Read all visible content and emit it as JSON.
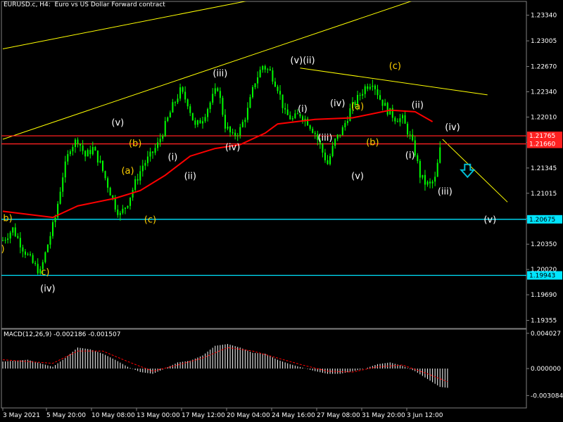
{
  "header": {
    "symbol_line": "EURUSD.c, H4:  Euro vs US Dollar Forward contract",
    "indicator_line": "MACD(12,26,9) -0.002186 -0.001507"
  },
  "colors": {
    "background": "#000000",
    "frame": "#808080",
    "candle": "#00ff00",
    "ma": "#ff0000",
    "trendline": "#ffff00",
    "level_cyan": "#00e5ff",
    "level_red": "#ff2020",
    "wave_white": "#ffffff",
    "wave_yellow": "#ffd000",
    "macd_hist": "#ffffff",
    "macd_signal": "#ff0000",
    "arrow": "#00bcd4"
  },
  "chart_data": [
    {
      "type": "candlestick",
      "symbol": "EURUSD.c",
      "timeframe": "H4",
      "ylim": [
        1.1925,
        1.2352
      ],
      "y_ticks": [
        1.2334,
        1.23005,
        1.2267,
        1.2234,
        1.2201,
        1.2168,
        1.21345,
        1.21015,
        1.20685,
        1.2035,
        1.2002,
        1.1969,
        1.19355
      ],
      "y_tick_labels": [
        "1.23340",
        "1.23005",
        "1.22670",
        "1.22340",
        "1.22010",
        "1.21680",
        "1.21345",
        "1.21015",
        "1.20685",
        "1.20350",
        "1.20020",
        "1.19690",
        "1.19355"
      ],
      "x_tick_labels": [
        "3 May 2021",
        "5 May 20:00",
        "10 May 08:00",
        "13 May 00:00",
        "17 May 12:00",
        "20 May 04:00",
        "24 May 16:00",
        "27 May 08:00",
        "31 May 20:00",
        "3 Jun 12:00"
      ],
      "close_path": [
        [
          0,
          1.204
        ],
        [
          4,
          1.2055
        ],
        [
          8,
          1.203
        ],
        [
          12,
          1.201
        ],
        [
          15,
          1.1998
        ],
        [
          18,
          1.2035
        ],
        [
          21,
          1.207
        ],
        [
          24,
          1.2125
        ],
        [
          27,
          1.2162
        ],
        [
          30,
          1.2172
        ],
        [
          33,
          1.215
        ],
        [
          36,
          1.216
        ],
        [
          39,
          1.214
        ],
        [
          42,
          1.2112
        ],
        [
          45,
          1.2085
        ],
        [
          47,
          1.2073
        ],
        [
          50,
          1.209
        ],
        [
          53,
          1.2115
        ],
        [
          56,
          1.2138
        ],
        [
          59,
          1.215
        ],
        [
          62,
          1.2165
        ],
        [
          65,
          1.219
        ],
        [
          68,
          1.2215
        ],
        [
          71,
          1.2235
        ],
        [
          74,
          1.222
        ],
        [
          77,
          1.2188
        ],
        [
          80,
          1.22
        ],
        [
          83,
          1.222
        ],
        [
          86,
          1.224
        ],
        [
          89,
          1.219
        ],
        [
          92,
          1.2175
        ],
        [
          95,
          1.2185
        ],
        [
          98,
          1.221
        ],
        [
          101,
          1.2248
        ],
        [
          104,
          1.2268
        ],
        [
          107,
          1.226
        ],
        [
          110,
          1.224
        ],
        [
          113,
          1.2205
        ],
        [
          116,
          1.2198
        ],
        [
          119,
          1.2205
        ],
        [
          122,
          1.2195
        ],
        [
          125,
          1.218
        ],
        [
          128,
          1.2155
        ],
        [
          130,
          1.214
        ],
        [
          133,
          1.217
        ],
        [
          136,
          1.2185
        ],
        [
          139,
          1.221
        ],
        [
          142,
          1.2225
        ],
        [
          145,
          1.224
        ],
        [
          148,
          1.2248
        ],
        [
          151,
          1.2225
        ],
        [
          154,
          1.221
        ],
        [
          157,
          1.22
        ],
        [
          160,
          1.2198
        ],
        [
          163,
          1.2175
        ],
        [
          165,
          1.2155
        ],
        [
          167,
          1.2125
        ],
        [
          169,
          1.2115
        ],
        [
          171,
          1.2112
        ],
        [
          173,
          1.212
        ],
        [
          175,
          1.2158
        ]
      ],
      "moving_average": [
        [
          0,
          1.2078
        ],
        [
          20,
          1.207
        ],
        [
          30,
          1.2085
        ],
        [
          45,
          1.2095
        ],
        [
          55,
          1.2105
        ],
        [
          65,
          1.2125
        ],
        [
          75,
          1.215
        ],
        [
          85,
          1.216
        ],
        [
          95,
          1.2165
        ],
        [
          105,
          1.218
        ],
        [
          110,
          1.2192
        ],
        [
          125,
          1.2198
        ],
        [
          140,
          1.22
        ],
        [
          155,
          1.221
        ],
        [
          165,
          1.2208
        ],
        [
          172,
          1.2195
        ]
      ],
      "horizontal_levels": [
        {
          "price": 1.21765,
          "label": "1.21765",
          "color": "red"
        },
        {
          "price": 1.2166,
          "label": "1.21660",
          "color": "red"
        },
        {
          "price": 1.20675,
          "label": "1.20675",
          "color": "cyan"
        },
        {
          "price": 1.19943,
          "label": "1.19943",
          "color": "cyan"
        }
      ],
      "trendlines": [
        {
          "from": [
            0,
            1.229
          ],
          "to": [
            125,
            1.237
          ]
        },
        {
          "from": [
            0,
            1.2172
          ],
          "to": [
            175,
            1.2365
          ]
        },
        {
          "from": [
            119,
            1.2265
          ],
          "to": [
            194,
            1.223
          ]
        },
        {
          "from": [
            176,
            1.2172
          ],
          "to": [
            202,
            1.209
          ]
        }
      ],
      "wave_labels": [
        {
          "text": "b)",
          "x": 2,
          "price": 1.2065,
          "color": "yellow"
        },
        {
          "text": ")",
          "x": 0,
          "price": 1.2025,
          "color": "yellow"
        },
        {
          "text": "c)",
          "x": 17,
          "price": 1.1995,
          "color": "yellow"
        },
        {
          "text": "(iv)",
          "x": 18,
          "price": 1.1973,
          "color": "white"
        },
        {
          "text": "(v)",
          "x": 46,
          "price": 1.219,
          "color": "white"
        },
        {
          "text": "(b)",
          "x": 53,
          "price": 1.2163,
          "color": "yellow"
        },
        {
          "text": "(a)",
          "x": 50,
          "price": 1.2127,
          "color": "yellow"
        },
        {
          "text": "(c)",
          "x": 59,
          "price": 1.2063,
          "color": "yellow"
        },
        {
          "text": "(i)",
          "x": 68,
          "price": 1.2145,
          "color": "white"
        },
        {
          "text": "(ii)",
          "x": 75,
          "price": 1.212,
          "color": "white"
        },
        {
          "text": "(iii)",
          "x": 87,
          "price": 1.2254,
          "color": "white"
        },
        {
          "text": "(iv)",
          "x": 92,
          "price": 1.2158,
          "color": "white"
        },
        {
          "text": "(v)(ii)",
          "x": 120,
          "price": 1.2271,
          "color": "white"
        },
        {
          "text": "(i)",
          "x": 120,
          "price": 1.2208,
          "color": "white"
        },
        {
          "text": "(iv)",
          "x": 134,
          "price": 1.2215,
          "color": "white"
        },
        {
          "text": "(a)",
          "x": 142,
          "price": 1.2211,
          "color": "yellow"
        },
        {
          "text": "(iii)",
          "x": 129,
          "price": 1.217,
          "color": "white"
        },
        {
          "text": "(b)",
          "x": 148,
          "price": 1.2164,
          "color": "yellow"
        },
        {
          "text": "(v)",
          "x": 142,
          "price": 1.212,
          "color": "white"
        },
        {
          "text": "(c)",
          "x": 157,
          "price": 1.2264,
          "color": "yellow"
        },
        {
          "text": "(ii)",
          "x": 166,
          "price": 1.2213,
          "color": "white"
        },
        {
          "text": "(i)",
          "x": 163,
          "price": 1.2147,
          "color": "white"
        },
        {
          "text": "(iv)",
          "x": 180,
          "price": 1.2184,
          "color": "white"
        },
        {
          "text": "(iii)",
          "x": 177,
          "price": 1.21,
          "color": "white"
        },
        {
          "text": "(v)",
          "x": 195,
          "price": 1.2063,
          "color": "white"
        }
      ],
      "arrow": {
        "direction": "down",
        "x": 186,
        "price": 1.213
      }
    },
    {
      "type": "bar",
      "name": "MACD(12,26,9)",
      "main": -0.002186,
      "signal": -0.001507,
      "ylim": [
        -0.0045,
        0.0045
      ],
      "y_ticks": [
        0.004027,
        0.0,
        -0.003084
      ],
      "y_tick_labels": [
        "0.004027",
        "0.000000",
        "-0.003084"
      ],
      "histogram": [
        [
          0,
          0.0008
        ],
        [
          10,
          0.001
        ],
        [
          15,
          0.0006
        ],
        [
          20,
          0.0002
        ],
        [
          25,
          0.0012
        ],
        [
          30,
          0.0024
        ],
        [
          35,
          0.0022
        ],
        [
          40,
          0.0017
        ],
        [
          45,
          0.001
        ],
        [
          50,
          0.0002
        ],
        [
          55,
          -0.0004
        ],
        [
          60,
          -0.0006
        ],
        [
          65,
          0.0
        ],
        [
          70,
          0.0007
        ],
        [
          75,
          0.0009
        ],
        [
          80,
          0.0015
        ],
        [
          85,
          0.0026
        ],
        [
          90,
          0.0028
        ],
        [
          95,
          0.0024
        ],
        [
          100,
          0.0018
        ],
        [
          105,
          0.0017
        ],
        [
          110,
          0.001
        ],
        [
          115,
          0.0005
        ],
        [
          120,
          0.0001
        ],
        [
          125,
          -0.0003
        ],
        [
          130,
          -0.0006
        ],
        [
          135,
          -0.0006
        ],
        [
          140,
          -0.0003
        ],
        [
          145,
          0.0
        ],
        [
          150,
          0.0005
        ],
        [
          155,
          0.0007
        ],
        [
          160,
          0.0003
        ],
        [
          165,
          -0.0003
        ],
        [
          170,
          -0.0012
        ],
        [
          175,
          -0.0021
        ],
        [
          178,
          -0.0022
        ]
      ],
      "signal_path": [
        [
          0,
          0.001
        ],
        [
          10,
          0.0008
        ],
        [
          20,
          0.0006
        ],
        [
          30,
          0.002
        ],
        [
          40,
          0.002
        ],
        [
          50,
          0.0008
        ],
        [
          60,
          -0.0003
        ],
        [
          70,
          0.0004
        ],
        [
          80,
          0.0012
        ],
        [
          90,
          0.0024
        ],
        [
          100,
          0.002
        ],
        [
          110,
          0.0012
        ],
        [
          120,
          0.0004
        ],
        [
          130,
          -0.0003
        ],
        [
          140,
          -0.0004
        ],
        [
          150,
          0.0002
        ],
        [
          160,
          0.0004
        ],
        [
          170,
          -0.0006
        ],
        [
          178,
          -0.0015
        ]
      ]
    }
  ]
}
